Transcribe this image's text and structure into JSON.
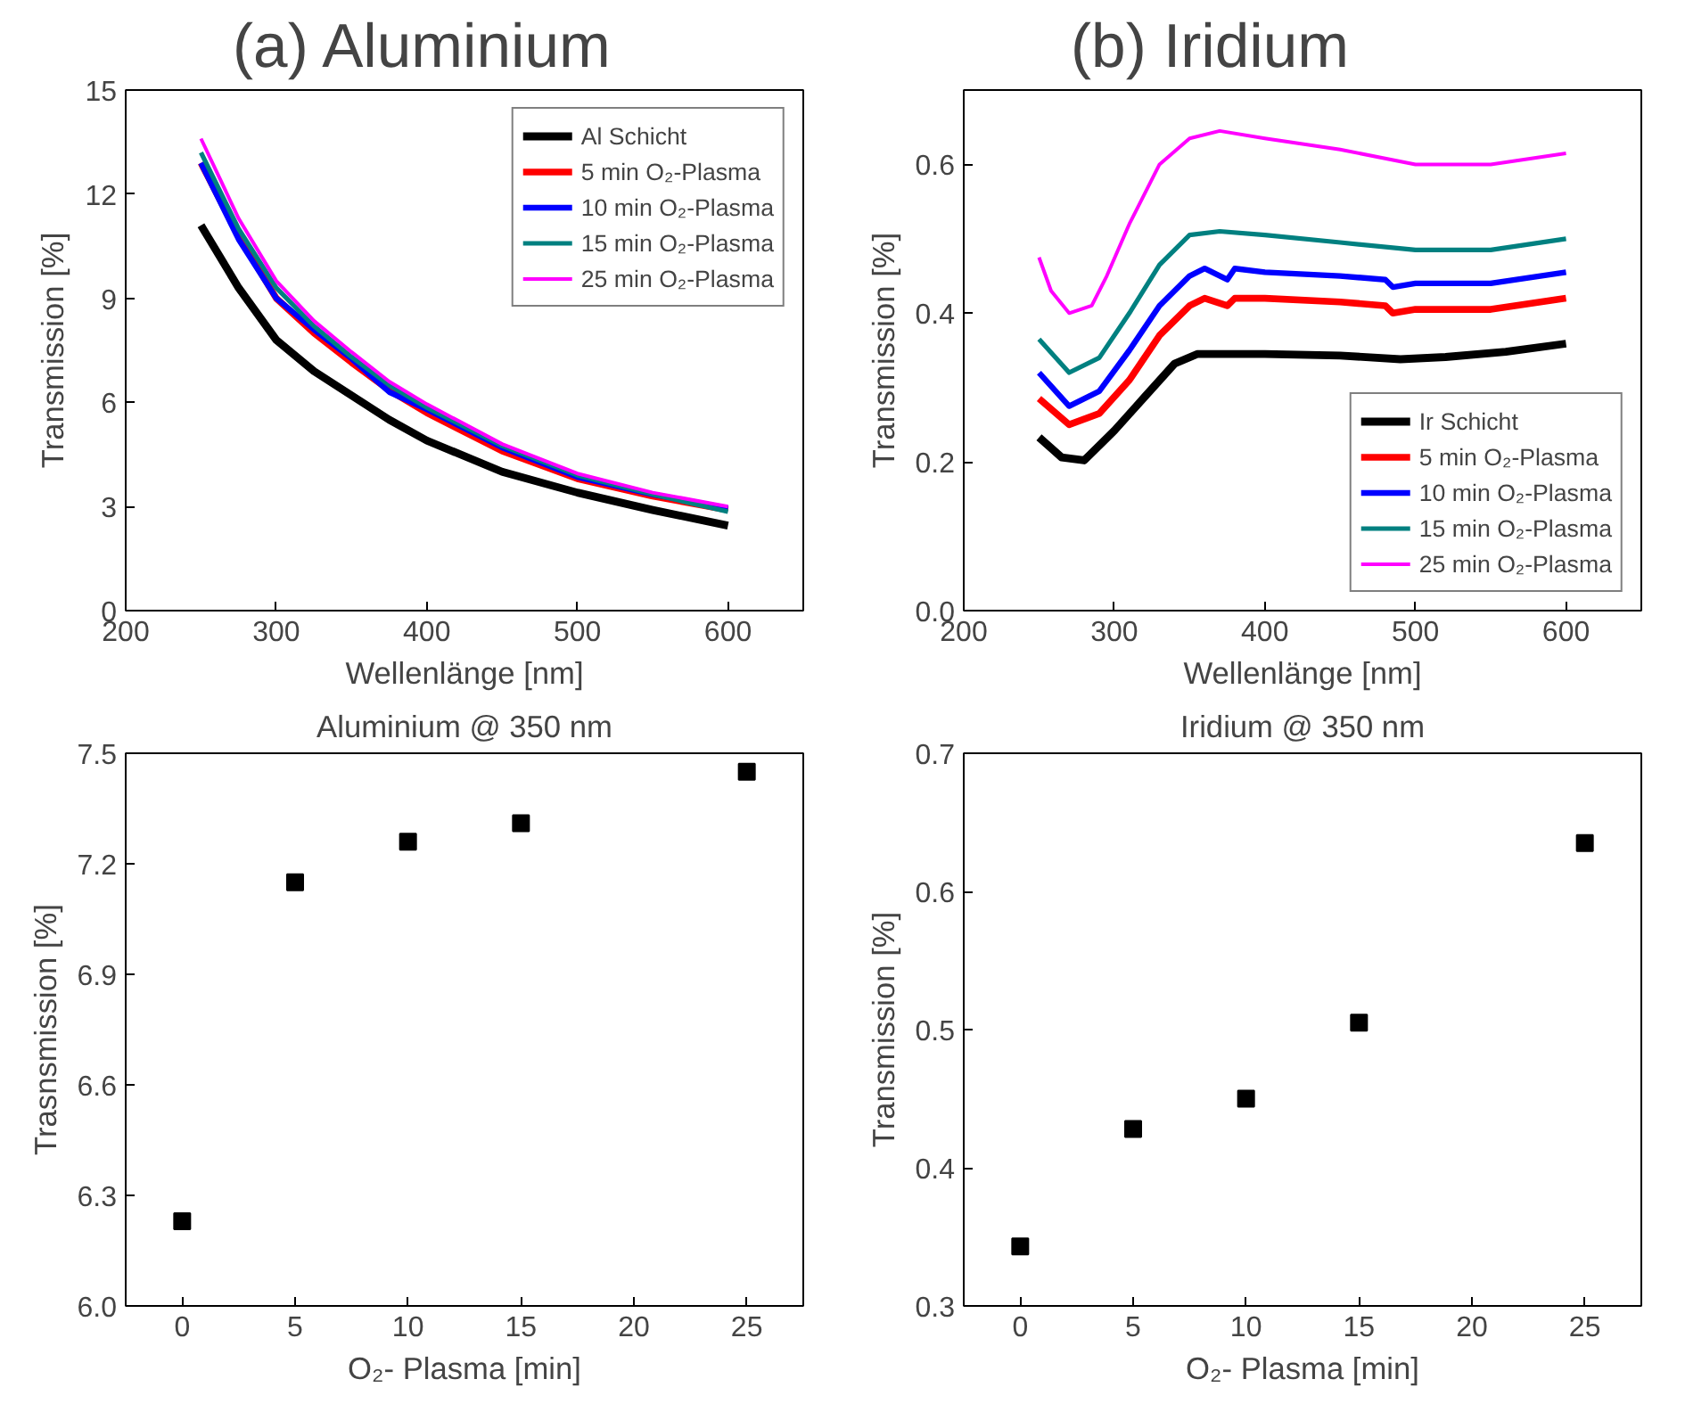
{
  "chart_data": [
    {
      "type": "line",
      "title": "(a) Aluminium",
      "xlabel": "Wellenlänge [nm]",
      "ylabel": "Transmission [%]",
      "xlim": [
        200,
        650
      ],
      "ylim": [
        0,
        15
      ],
      "xticks": [
        200,
        300,
        400,
        500,
        600
      ],
      "yticks": [
        0,
        3,
        6,
        9,
        12,
        15
      ],
      "grid": false,
      "legend": "top right",
      "x": [
        250,
        275,
        300,
        325,
        350,
        375,
        400,
        450,
        500,
        550,
        600
      ],
      "series": [
        {
          "name": "Al Schicht",
          "color": "#000000",
          "values": [
            11.1,
            9.3,
            7.8,
            6.9,
            6.2,
            5.5,
            4.9,
            4.0,
            3.4,
            2.9,
            2.45
          ]
        },
        {
          "name": "5 min O₂-Plasma",
          "color": "#ff0000",
          "values": [
            12.9,
            10.8,
            9.0,
            8.0,
            7.15,
            6.35,
            5.7,
            4.6,
            3.8,
            3.3,
            2.9
          ]
        },
        {
          "name": "10 min O₂-Plasma",
          "color": "#0000ff",
          "values": [
            12.9,
            10.7,
            9.0,
            8.1,
            7.26,
            6.3,
            5.8,
            4.7,
            3.85,
            3.35,
            2.95
          ]
        },
        {
          "name": "15 min O₂-Plasma",
          "color": "#008080",
          "values": [
            13.2,
            11.0,
            9.3,
            8.2,
            7.31,
            6.5,
            5.85,
            4.75,
            3.9,
            3.35,
            2.85
          ]
        },
        {
          "name": "25 min O₂-Plasma",
          "color": "#ff00ff",
          "values": [
            13.6,
            11.3,
            9.5,
            8.35,
            7.45,
            6.6,
            5.95,
            4.8,
            3.95,
            3.4,
            3.0
          ]
        }
      ]
    },
    {
      "type": "line",
      "title": "(b) Iridium",
      "xlabel": "Wellenlänge [nm]",
      "ylabel": "Transmission [%]",
      "xlim": [
        200,
        650
      ],
      "ylim": [
        0,
        0.7
      ],
      "xticks": [
        200,
        300,
        400,
        500,
        600
      ],
      "yticks": [
        {
          "value": 0,
          "label": "0.0"
        },
        0.2,
        0.4,
        0.6
      ],
      "grid": false,
      "legend": "bottom right",
      "series": [
        {
          "name": "Ir Schicht",
          "color": "#000000",
          "x": [
            250,
            265,
            280,
            300,
            320,
            340,
            355,
            400,
            450,
            490,
            520,
            560,
            600
          ],
          "values": [
            0.233,
            0.206,
            0.202,
            0.242,
            0.287,
            0.332,
            0.345,
            0.345,
            0.343,
            0.338,
            0.341,
            0.348,
            0.359
          ]
        },
        {
          "name": "5 min O₂-Plasma",
          "color": "#ff0000",
          "x": [
            250,
            270,
            290,
            310,
            330,
            350,
            360,
            375,
            380,
            400,
            450,
            480,
            485,
            500,
            550,
            600
          ],
          "values": [
            0.285,
            0.25,
            0.265,
            0.31,
            0.37,
            0.41,
            0.42,
            0.41,
            0.42,
            0.42,
            0.415,
            0.41,
            0.4,
            0.405,
            0.405,
            0.42
          ]
        },
        {
          "name": "10 min O₂-Plasma",
          "color": "#0000ff",
          "x": [
            250,
            270,
            290,
            310,
            330,
            350,
            360,
            375,
            380,
            400,
            450,
            480,
            485,
            500,
            550,
            600
          ],
          "values": [
            0.32,
            0.275,
            0.295,
            0.35,
            0.41,
            0.45,
            0.46,
            0.445,
            0.46,
            0.455,
            0.45,
            0.445,
            0.435,
            0.44,
            0.44,
            0.455
          ]
        },
        {
          "name": "15 min O₂-Plasma",
          "color": "#008080",
          "x": [
            250,
            270,
            290,
            310,
            330,
            350,
            370,
            400,
            450,
            500,
            550,
            600
          ],
          "values": [
            0.365,
            0.32,
            0.34,
            0.4,
            0.465,
            0.505,
            0.51,
            0.505,
            0.495,
            0.485,
            0.485,
            0.5
          ]
        },
        {
          "name": "25 min O₂-Plasma",
          "color": "#ff00ff",
          "x": [
            250,
            258,
            270,
            285,
            295,
            310,
            330,
            350,
            370,
            400,
            450,
            500,
            550,
            600
          ],
          "values": [
            0.475,
            0.43,
            0.4,
            0.41,
            0.45,
            0.52,
            0.6,
            0.635,
            0.645,
            0.635,
            0.62,
            0.6,
            0.6,
            0.615
          ]
        }
      ]
    },
    {
      "type": "scatter",
      "title": "Aluminium @ 350 nm",
      "xlabel": "O₂- Plasma [min]",
      "ylabel": "Trasnsmission [%]",
      "xlim": [
        -2.5,
        27.5
      ],
      "ylim": [
        6,
        7.5
      ],
      "xticks": [
        0,
        5,
        10,
        15,
        20,
        25
      ],
      "yticks": [
        {
          "value": 6,
          "label": "6.0"
        },
        6.3,
        6.6,
        6.9,
        7.2,
        7.5
      ],
      "grid": false,
      "marker": "square",
      "x": [
        0,
        5,
        10,
        15,
        25
      ],
      "series": [
        {
          "color": "#000000",
          "values": [
            6.23,
            7.15,
            7.26,
            7.31,
            7.45
          ]
        }
      ]
    },
    {
      "type": "scatter",
      "title": "Iridium @ 350 nm",
      "xlabel": "O₂- Plasma [min]",
      "ylabel": "Transmission [%]",
      "xlim": [
        -2.5,
        27.5
      ],
      "ylim": [
        0.3,
        0.7
      ],
      "xticks": [
        0,
        5,
        10,
        15,
        20,
        25
      ],
      "yticks": [
        0.3,
        0.4,
        0.5,
        0.6,
        0.7
      ],
      "grid": false,
      "marker": "square",
      "x": [
        0,
        5,
        10,
        15,
        25
      ],
      "series": [
        {
          "color": "#000000",
          "values": [
            0.343,
            0.428,
            0.45,
            0.505,
            0.635
          ]
        }
      ]
    }
  ]
}
